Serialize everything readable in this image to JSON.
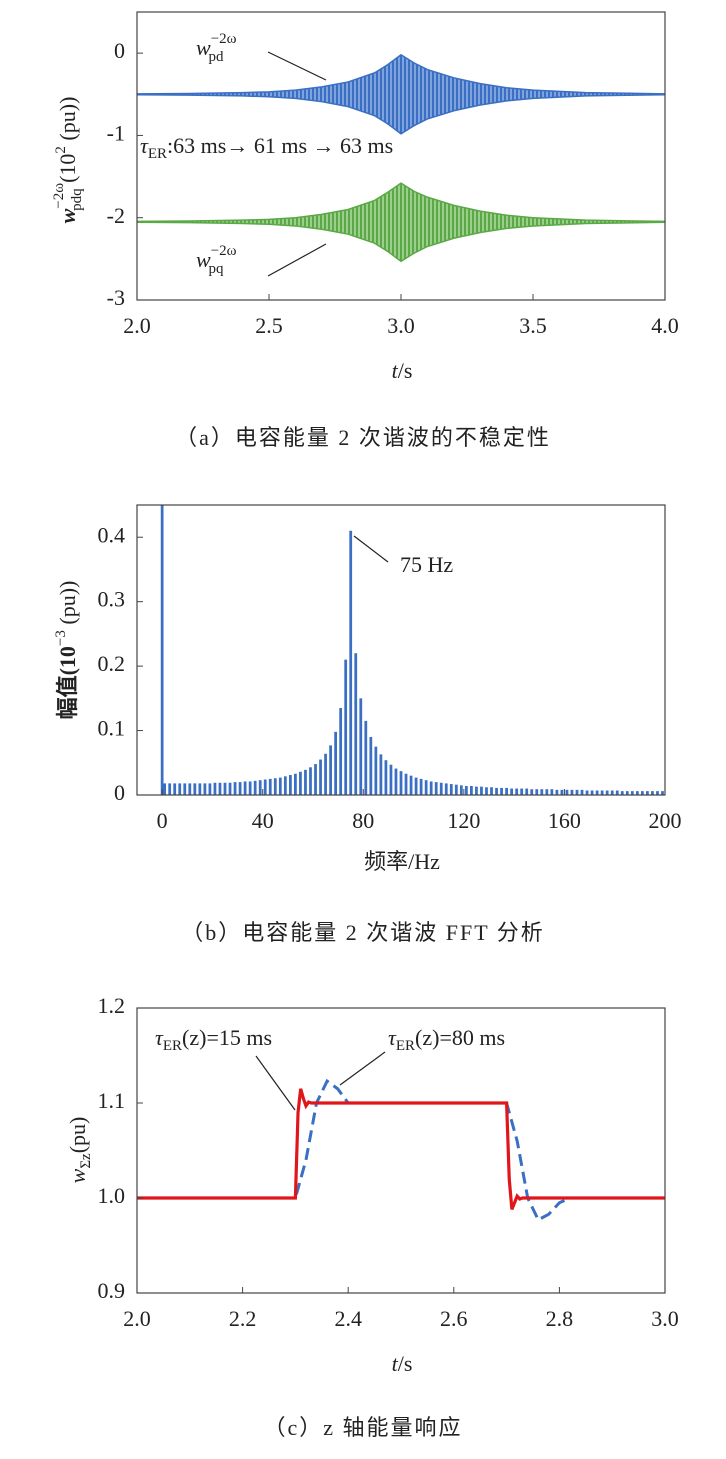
{
  "chart_data": [
    {
      "type": "band",
      "ylabel": {
        "symbol": "w",
        "sup": "−2ω",
        "sub": "pdq",
        "unit": " (10",
        "unit_sup": "2",
        "unit_end": " (pu))"
      },
      "xlabel": {
        "symbol": "t",
        "unit": "/s"
      },
      "caption": "（a）电容能量 2 次谐波的不稳定性",
      "annotations": {
        "pd": {
          "symbol": "w",
          "sup": "−2ω",
          "sub": "pd"
        },
        "pq": {
          "symbol": "w",
          "sup": "−2ω",
          "sub": "pq"
        },
        "tau": {
          "symbol": "τ",
          "sub": "ER",
          "text": ":63 ms→ 61 ms → 63 ms"
        }
      },
      "xlim": [
        2,
        4
      ],
      "ylim": [
        -3,
        0.5
      ],
      "xticks": [
        {
          "value": 2,
          "label": "2.0"
        },
        2.5,
        {
          "value": 3,
          "label": "3.0"
        },
        3.5,
        {
          "value": 4,
          "label": "4.0"
        }
      ],
      "yticks": [
        -3,
        -2,
        -1,
        0
      ],
      "series": [
        {
          "color": "#3a6fc4",
          "x": [
            2.0,
            2.2,
            2.4,
            2.5,
            2.6,
            2.7,
            2.8,
            2.9,
            2.95,
            3.0,
            3.05,
            3.1,
            3.2,
            3.3,
            3.4,
            3.5,
            3.7,
            4.0
          ],
          "upper": [
            -0.495,
            -0.49,
            -0.48,
            -0.47,
            -0.45,
            -0.41,
            -0.35,
            -0.24,
            -0.14,
            -0.02,
            -0.12,
            -0.2,
            -0.3,
            -0.37,
            -0.42,
            -0.45,
            -0.48,
            -0.495
          ],
          "lower": [
            -0.505,
            -0.51,
            -0.52,
            -0.53,
            -0.55,
            -0.59,
            -0.65,
            -0.76,
            -0.86,
            -0.98,
            -0.88,
            -0.8,
            -0.7,
            -0.63,
            -0.58,
            -0.55,
            -0.52,
            -0.505
          ]
        },
        {
          "color": "#5aa846",
          "x": [
            2.0,
            2.2,
            2.4,
            2.5,
            2.6,
            2.7,
            2.8,
            2.9,
            2.95,
            3.0,
            3.05,
            3.1,
            3.2,
            3.3,
            3.4,
            3.5,
            3.7,
            4.0
          ],
          "upper": [
            -2.045,
            -2.04,
            -2.03,
            -2.02,
            -2.0,
            -1.96,
            -1.9,
            -1.79,
            -1.69,
            -1.58,
            -1.68,
            -1.75,
            -1.85,
            -1.92,
            -1.97,
            -2.0,
            -2.03,
            -2.045
          ],
          "lower": [
            -2.055,
            -2.06,
            -2.07,
            -2.08,
            -2.1,
            -2.14,
            -2.2,
            -2.31,
            -2.41,
            -2.53,
            -2.43,
            -2.35,
            -2.25,
            -2.18,
            -2.13,
            -2.1,
            -2.07,
            -2.055
          ]
        }
      ]
    },
    {
      "type": "bar",
      "ylabel": {
        "text": "幅值(10",
        "sup": "−3",
        "unit_end": " (pu))"
      },
      "xlabel": "频率/Hz",
      "caption": "（b）电容能量 2 次谐波 FFT 分析",
      "annotation": "75  Hz",
      "xlim": [
        -10,
        200
      ],
      "ylim": [
        0,
        0.45
      ],
      "xticks": [
        0,
        40,
        80,
        120,
        160,
        200
      ],
      "yticks": [
        0,
        0.1,
        0.2,
        0.3,
        0.4
      ],
      "color": "#3a6fc4",
      "x": [
        0,
        1,
        3,
        5,
        7,
        9,
        11,
        13,
        15,
        17,
        19,
        21,
        23,
        25,
        27,
        29,
        31,
        33,
        35,
        37,
        39,
        41,
        43,
        45,
        47,
        49,
        51,
        53,
        55,
        57,
        59,
        61,
        63,
        65,
        67,
        69,
        71,
        73,
        75,
        77,
        79,
        81,
        83,
        85,
        87,
        89,
        91,
        93,
        95,
        97,
        99,
        101,
        103,
        105,
        107,
        109,
        111,
        113,
        115,
        117,
        119,
        121,
        123,
        125,
        127,
        129,
        131,
        133,
        135,
        137,
        139,
        141,
        143,
        145,
        147,
        149,
        151,
        153,
        155,
        157,
        159,
        161,
        163,
        165,
        167,
        169,
        171,
        173,
        175,
        177,
        179,
        181,
        183,
        185,
        187,
        189,
        191,
        193,
        195,
        197,
        199
      ],
      "values": [
        0.45,
        0.018,
        0.018,
        0.018,
        0.018,
        0.018,
        0.018,
        0.018,
        0.018,
        0.018,
        0.018,
        0.019,
        0.019,
        0.019,
        0.019,
        0.02,
        0.02,
        0.021,
        0.021,
        0.022,
        0.023,
        0.024,
        0.025,
        0.026,
        0.027,
        0.029,
        0.031,
        0.033,
        0.036,
        0.039,
        0.043,
        0.048,
        0.055,
        0.064,
        0.077,
        0.098,
        0.135,
        0.21,
        0.41,
        0.22,
        0.15,
        0.115,
        0.09,
        0.075,
        0.063,
        0.054,
        0.047,
        0.041,
        0.037,
        0.033,
        0.03,
        0.027,
        0.025,
        0.023,
        0.021,
        0.02,
        0.019,
        0.018,
        0.017,
        0.016,
        0.015,
        0.014,
        0.014,
        0.013,
        0.013,
        0.012,
        0.012,
        0.011,
        0.011,
        0.011,
        0.01,
        0.01,
        0.01,
        0.01,
        0.009,
        0.009,
        0.009,
        0.009,
        0.009,
        0.008,
        0.008,
        0.008,
        0.008,
        0.008,
        0.008,
        0.007,
        0.007,
        0.007,
        0.007,
        0.007,
        0.007,
        0.007,
        0.006,
        0.006,
        0.006,
        0.006,
        0.006,
        0.006,
        0.006,
        0.006,
        0.006
      ]
    },
    {
      "type": "line",
      "ylabel": {
        "symbol": "w",
        "sub": "Σz",
        "unit": "(pu)"
      },
      "xlabel": {
        "symbol": "t",
        "unit": "/s"
      },
      "caption": "（c）z 轴能量响应",
      "annotations": {
        "a15": {
          "symbol": "τ",
          "sub": "ER",
          "text": "(z)=15 ms"
        },
        "a80": {
          "symbol": "τ",
          "sub": "ER",
          "text": "(z)=80 ms"
        }
      },
      "xlim": [
        2,
        3
      ],
      "ylim": [
        0.9,
        1.2
      ],
      "xticks": [
        {
          "value": 2,
          "label": "2.0"
        },
        2.2,
        2.4,
        2.6,
        2.8,
        {
          "value": 3,
          "label": "3.0"
        }
      ],
      "yticks": [
        0.9,
        {
          "value": 1,
          "label": "1.0"
        },
        1.1,
        1.2
      ],
      "series": [
        {
          "color": "#3a6fc4",
          "dash": true,
          "x": [
            2.0,
            2.3,
            2.32,
            2.34,
            2.36,
            2.38,
            2.4,
            2.42,
            2.7,
            2.72,
            2.74,
            2.76,
            2.78,
            2.8,
            2.82,
            3.0
          ],
          "values": [
            1.0,
            1.0,
            1.04,
            1.1,
            1.123,
            1.115,
            1.1,
            1.1,
            1.1,
            1.06,
            1.0,
            0.977,
            0.983,
            0.995,
            1.0,
            1.0
          ]
        },
        {
          "color": "#e0161b",
          "dash": false,
          "x": [
            2.0,
            2.3,
            2.305,
            2.31,
            2.315,
            2.32,
            2.325,
            2.33,
            2.7,
            2.705,
            2.71,
            2.715,
            2.72,
            2.725,
            2.73,
            3.0
          ],
          "values": [
            1.0,
            1.0,
            1.09,
            1.115,
            1.105,
            1.097,
            1.101,
            1.1,
            1.1,
            1.02,
            0.988,
            0.995,
            1.002,
            0.999,
            1.0,
            1.0
          ]
        }
      ]
    }
  ]
}
